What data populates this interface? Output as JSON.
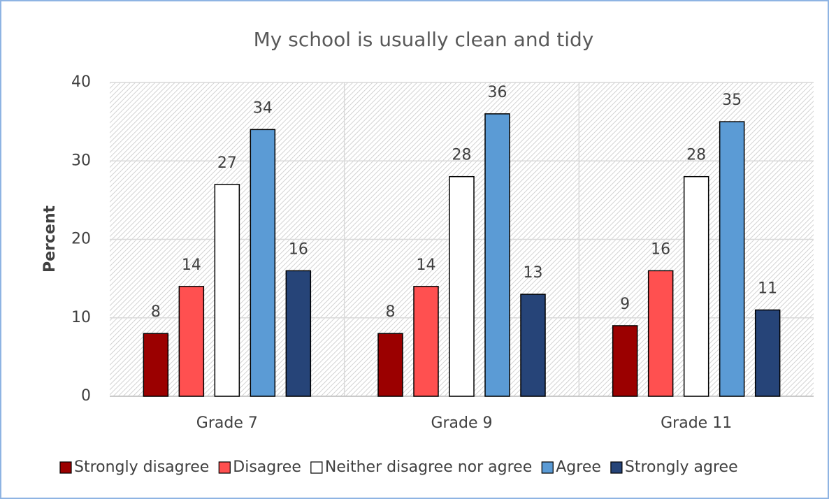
{
  "chart_data": {
    "type": "bar",
    "title": "My school is usually clean and tidy",
    "y_label": "Percent",
    "categories": [
      "Grade 7",
      "Grade 9",
      "Grade 11"
    ],
    "series": [
      {
        "name": "Strongly disagree",
        "color": "#9b0000",
        "values": [
          8,
          8,
          9
        ]
      },
      {
        "name": "Disagree",
        "color": "#ff5050",
        "values": [
          14,
          14,
          16
        ]
      },
      {
        "name": "Neither disagree nor agree",
        "color": "#ffffff",
        "values": [
          27,
          28,
          28
        ]
      },
      {
        "name": "Agree",
        "color": "#5b9bd5",
        "values": [
          34,
          36,
          35
        ]
      },
      {
        "name": "Strongly agree",
        "color": "#264478",
        "values": [
          16,
          13,
          11
        ]
      }
    ],
    "ylim": [
      0,
      40
    ],
    "yticks": [
      0,
      10,
      20,
      30,
      40
    ],
    "grid": true,
    "legend": "bottom"
  }
}
